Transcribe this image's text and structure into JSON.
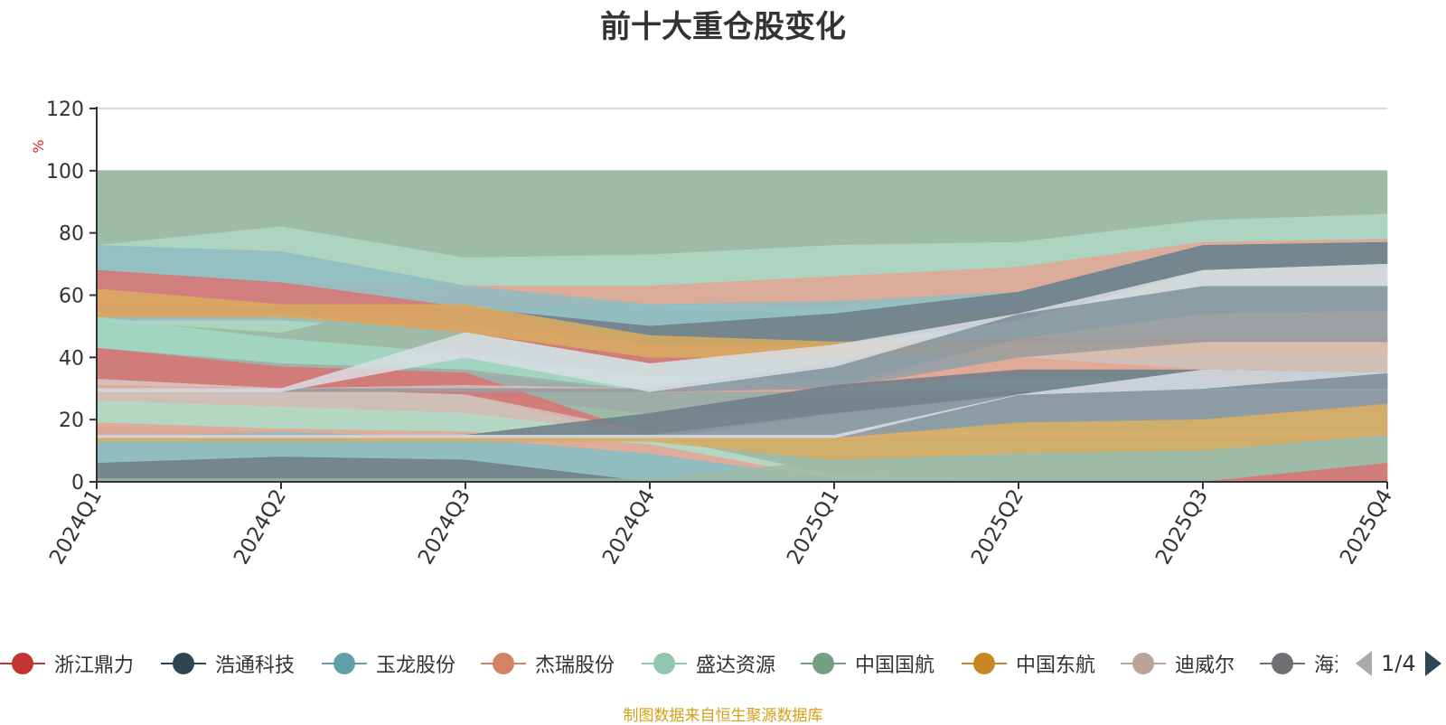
{
  "chart_data": {
    "type": "area",
    "title": "前十大重仓股变化",
    "ylabel": "%",
    "ylim": [
      0,
      120
    ],
    "yticks": [
      0,
      20,
      40,
      60,
      80,
      100,
      120
    ],
    "categories": [
      "2024Q1",
      "2024Q2",
      "2024Q3",
      "2024Q4",
      "2025Q1",
      "2025Q2",
      "2025Q3",
      "2025Q4"
    ],
    "grid": true,
    "bands": [
      {
        "color": "#9dbba7",
        "values": [
          [
            0,
            100
          ],
          [
            0,
            100
          ],
          [
            0,
            100
          ],
          [
            0,
            100
          ],
          [
            0,
            100
          ],
          [
            0,
            100
          ],
          [
            0,
            100
          ],
          [
            0,
            100
          ]
        ]
      },
      {
        "color": "#b0d8c4",
        "values": [
          [
            52,
            76
          ],
          [
            48,
            82
          ],
          [
            62,
            72
          ],
          [
            56,
            73
          ],
          [
            54,
            76
          ],
          [
            60,
            77
          ],
          [
            75,
            84
          ],
          [
            77,
            86
          ]
        ]
      },
      {
        "color": "#e4a593",
        "values": [
          [
            52,
            68
          ],
          [
            52,
            64
          ],
          [
            56,
            63
          ],
          [
            57,
            63
          ],
          [
            56,
            66
          ],
          [
            61,
            69
          ],
          [
            75,
            77
          ],
          [
            77,
            78
          ]
        ]
      },
      {
        "color": "#8fbcc4",
        "values": [
          [
            52,
            76
          ],
          [
            52,
            74
          ],
          [
            48,
            63
          ],
          [
            50,
            57
          ],
          [
            52,
            58
          ],
          [
            56,
            61
          ],
          [
            74,
            76
          ],
          [
            76,
            77
          ]
        ]
      },
      {
        "color": "#6e7c88",
        "values": [
          [
            55,
            57
          ],
          [
            54,
            56
          ],
          [
            50,
            56
          ],
          [
            44,
            50
          ],
          [
            44,
            54
          ],
          [
            52,
            61
          ],
          [
            68,
            76
          ],
          [
            70,
            77
          ]
        ]
      },
      {
        "color": "#d97373",
        "values": [
          [
            53,
            68
          ],
          [
            54,
            64
          ],
          [
            48,
            56
          ],
          [
            38,
            44
          ],
          [
            43,
            44
          ],
          [
            44,
            46
          ],
          [
            44,
            46
          ],
          [
            44,
            46
          ]
        ]
      },
      {
        "color": "#d9ab60",
        "values": [
          [
            53,
            62
          ],
          [
            53,
            57
          ],
          [
            48,
            57
          ],
          [
            40,
            47
          ],
          [
            40,
            45
          ],
          [
            40,
            45
          ],
          [
            40,
            45
          ],
          [
            40,
            45
          ]
        ]
      },
      {
        "color": "#a2d9c3",
        "values": [
          [
            42,
            53
          ],
          [
            37,
            46
          ],
          [
            35,
            41
          ],
          [
            29,
            34
          ],
          [
            29,
            33
          ],
          [
            29,
            33
          ],
          [
            29,
            33
          ],
          [
            29,
            33
          ]
        ]
      },
      {
        "color": "#a0aaa8",
        "values": [
          [
            40,
            43
          ],
          [
            30,
            38
          ],
          [
            28,
            36
          ],
          [
            22,
            29
          ],
          [
            22,
            29
          ],
          [
            22,
            29
          ],
          [
            22,
            29
          ],
          [
            22,
            29
          ]
        ]
      },
      {
        "color": "#d97373",
        "values": [
          [
            32,
            43
          ],
          [
            30,
            37
          ],
          [
            28,
            35
          ],
          [
            14,
            15
          ],
          [
            14,
            15
          ],
          [
            14,
            15
          ],
          [
            14,
            15
          ],
          [
            14,
            15
          ]
        ]
      },
      {
        "color": "#d8bfb8",
        "values": [
          [
            26,
            33
          ],
          [
            24,
            30
          ],
          [
            22,
            28
          ],
          [
            14,
            16
          ],
          [
            14,
            16
          ],
          [
            14,
            16
          ],
          [
            14,
            16
          ],
          [
            14,
            16
          ]
        ]
      },
      {
        "color": "#b8dcc8",
        "values": [
          [
            18,
            26
          ],
          [
            16,
            24
          ],
          [
            14,
            22
          ],
          [
            9,
            15
          ],
          [
            0,
            2
          ],
          [
            0,
            1
          ],
          [
            0,
            1
          ],
          [
            0,
            1
          ]
        ]
      },
      {
        "color": "#e4a593",
        "values": [
          [
            14,
            19
          ],
          [
            15,
            17
          ],
          [
            13,
            16
          ],
          [
            9,
            12
          ],
          [
            0,
            1
          ],
          [
            0,
            1
          ],
          [
            0,
            1
          ],
          [
            0,
            1
          ]
        ]
      },
      {
        "color": "#8fbcc4",
        "values": [
          [
            6,
            14
          ],
          [
            8,
            16
          ],
          [
            7,
            14
          ],
          [
            0,
            9
          ],
          [
            0,
            1
          ],
          [
            0,
            1
          ],
          [
            0,
            1
          ],
          [
            0,
            1
          ]
        ]
      },
      {
        "color": "#6e7c88",
        "values": [
          [
            0,
            6
          ],
          [
            0,
            8
          ],
          [
            0,
            7
          ],
          [
            0,
            0
          ],
          [
            0,
            0
          ],
          [
            0,
            0
          ],
          [
            0,
            0
          ],
          [
            0,
            0
          ]
        ]
      },
      {
        "color": "#d8bfb8",
        "values": [
          [
            30,
            33
          ],
          [
            29,
            30
          ],
          [
            29,
            31
          ],
          [
            29,
            30
          ],
          [
            30,
            31
          ],
          [
            35,
            40
          ],
          [
            36,
            45
          ],
          [
            35,
            45
          ]
        ]
      },
      {
        "color": "#e4a593",
        "values": [
          [
            29,
            31
          ],
          [
            29,
            30
          ],
          [
            29,
            30
          ],
          [
            29,
            30
          ],
          [
            29,
            31
          ],
          [
            35,
            40
          ],
          [
            36,
            36
          ],
          [
            35,
            35
          ]
        ]
      },
      {
        "color": "#8b98a3",
        "values": [
          [
            29,
            30
          ],
          [
            29,
            30
          ],
          [
            29,
            30
          ],
          [
            29,
            30
          ],
          [
            30,
            38
          ],
          [
            46,
            54
          ],
          [
            54,
            63
          ],
          [
            55,
            63
          ]
        ]
      },
      {
        "color": "#9c9ea3",
        "values": [
          [
            29,
            30
          ],
          [
            29,
            30
          ],
          [
            29,
            30
          ],
          [
            29,
            30
          ],
          [
            30,
            31
          ],
          [
            40,
            46
          ],
          [
            45,
            54
          ],
          [
            45,
            55
          ]
        ]
      },
      {
        "color": "#d9dde3",
        "values": [
          [
            29,
            30
          ],
          [
            29,
            30
          ],
          [
            40,
            48
          ],
          [
            29,
            38
          ],
          [
            37,
            44
          ],
          [
            54,
            54
          ],
          [
            63,
            68
          ],
          [
            63,
            70
          ]
        ]
      },
      {
        "color": "#6e7c88",
        "values": [
          [
            14,
            15
          ],
          [
            14,
            15
          ],
          [
            14,
            15
          ],
          [
            14,
            22
          ],
          [
            22,
            31
          ],
          [
            28,
            36
          ],
          [
            30,
            36
          ],
          [
            30,
            35
          ]
        ]
      },
      {
        "color": "#8b98a3",
        "values": [
          [
            14,
            15
          ],
          [
            14,
            15
          ],
          [
            14,
            15
          ],
          [
            14,
            15
          ],
          [
            14,
            22
          ],
          [
            19,
            28
          ],
          [
            20,
            30
          ],
          [
            25,
            35
          ]
        ]
      },
      {
        "color": "#d9dde3",
        "values": [
          [
            14,
            15
          ],
          [
            14,
            15
          ],
          [
            14,
            15
          ],
          [
            14,
            15
          ],
          [
            14,
            15
          ],
          [
            28,
            28
          ],
          [
            30,
            36
          ],
          [
            35,
            35
          ]
        ]
      },
      {
        "color": "#d9ab60",
        "values": [
          [
            13,
            14
          ],
          [
            13,
            14
          ],
          [
            13,
            14
          ],
          [
            13,
            14
          ],
          [
            7,
            14
          ],
          [
            9,
            19
          ],
          [
            10,
            20
          ],
          [
            15,
            25
          ]
        ]
      },
      {
        "color": "#9dbba7",
        "values": [
          [
            0,
            1
          ],
          [
            0,
            1
          ],
          [
            0,
            1
          ],
          [
            0,
            1
          ],
          [
            0,
            7
          ],
          [
            0,
            9
          ],
          [
            0,
            10
          ],
          [
            6,
            15
          ]
        ]
      },
      {
        "color": "#d97373",
        "values": [
          [
            0,
            0
          ],
          [
            0,
            0
          ],
          [
            0,
            0
          ],
          [
            0,
            0
          ],
          [
            0,
            0
          ],
          [
            0,
            0
          ],
          [
            0,
            0
          ],
          [
            0,
            6
          ]
        ]
      }
    ]
  },
  "legend": {
    "items": [
      {
        "label": "浙江鼎力",
        "color": "#c23531"
      },
      {
        "label": "浩通科技",
        "color": "#2f4554"
      },
      {
        "label": "玉龙股份",
        "color": "#61a0a8"
      },
      {
        "label": "杰瑞股份",
        "color": "#d48265"
      },
      {
        "label": "盛达资源",
        "color": "#91c7ae"
      },
      {
        "label": "中国国航",
        "color": "#749f83"
      },
      {
        "label": "中国东航",
        "color": "#ca8622"
      },
      {
        "label": "迪威尔",
        "color": "#bda29a"
      },
      {
        "label": "海油",
        "color": "#6e7074"
      }
    ],
    "page_text": "1/4"
  },
  "source_note": "制图数据来自恒生聚源数据库"
}
